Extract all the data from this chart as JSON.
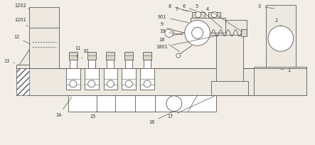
{
  "bg_color": "#f2ede6",
  "line_color": "#5a5a5a",
  "lw": 0.6,
  "fig_w": 4.43,
  "fig_h": 2.04,
  "dpi": 100
}
